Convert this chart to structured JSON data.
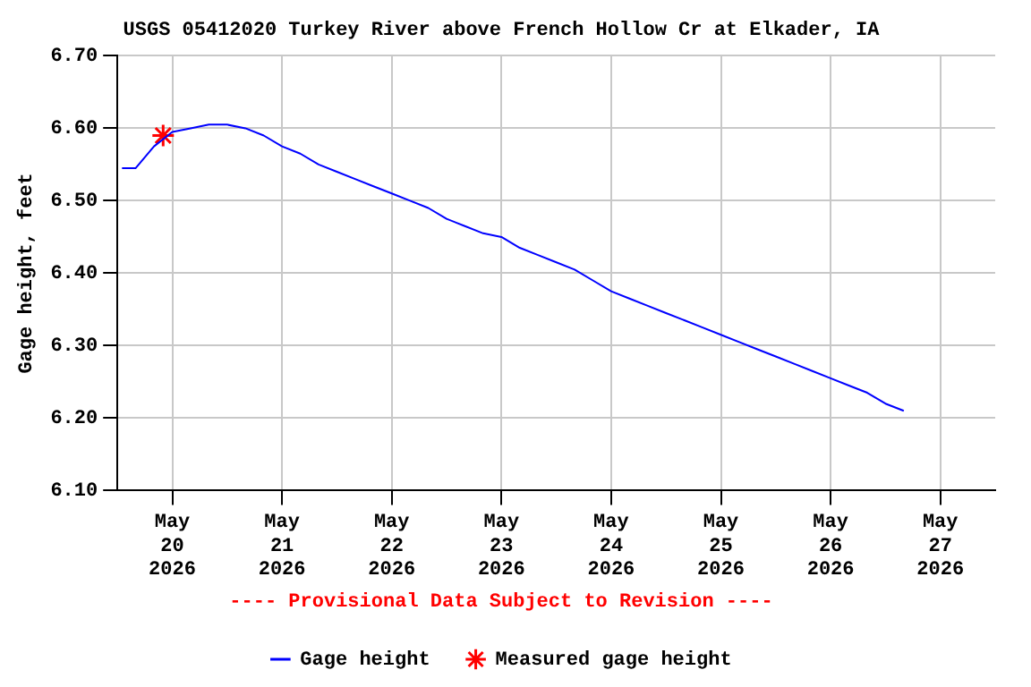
{
  "chart_data": {
    "type": "line",
    "title": "USGS 05412020 Turkey River above French Hollow Cr at Elkader, IA",
    "ylabel": "Gage height, feet",
    "annotations": [
      "---- Provisional Data Subject to Revision ----"
    ],
    "xlim": [
      "2026-05-19T12:00",
      "2026-05-27T12:00"
    ],
    "xticks": [
      {
        "value": "2026-05-20T00:00",
        "label": "May\n20\n2026"
      },
      {
        "value": "2026-05-21T00:00",
        "label": "May\n21\n2026"
      },
      {
        "value": "2026-05-22T00:00",
        "label": "May\n22\n2026"
      },
      {
        "value": "2026-05-23T00:00",
        "label": "May\n23\n2026"
      },
      {
        "value": "2026-05-24T00:00",
        "label": "May\n24\n2026"
      },
      {
        "value": "2026-05-25T00:00",
        "label": "May\n25\n2026"
      },
      {
        "value": "2026-05-26T00:00",
        "label": "May\n26\n2026"
      },
      {
        "value": "2026-05-27T00:00",
        "label": "May\n27\n2026"
      }
    ],
    "ylim": [
      6.1,
      6.7
    ],
    "yticks": [
      {
        "value": 6.1,
        "label": "6.10"
      },
      {
        "value": 6.2,
        "label": "6.20"
      },
      {
        "value": 6.3,
        "label": "6.30"
      },
      {
        "value": 6.4,
        "label": "6.40"
      },
      {
        "value": 6.5,
        "label": "6.50"
      },
      {
        "value": 6.6,
        "label": "6.60"
      },
      {
        "value": 6.7,
        "label": "6.70"
      }
    ],
    "grid": true,
    "legend": "bottom",
    "series": [
      {
        "name": "Gage height",
        "color": "#0000ff",
        "marker": "none",
        "line_style": "solid",
        "x": [
          "2026-05-19T13:00",
          "2026-05-19T16:00",
          "2026-05-19T20:00",
          "2026-05-20T00:00",
          "2026-05-20T04:00",
          "2026-05-20T08:00",
          "2026-05-20T12:00",
          "2026-05-20T16:00",
          "2026-05-20T20:00",
          "2026-05-21T00:00",
          "2026-05-21T04:00",
          "2026-05-21T08:00",
          "2026-05-21T12:00",
          "2026-05-21T16:00",
          "2026-05-21T20:00",
          "2026-05-22T00:00",
          "2026-05-22T04:00",
          "2026-05-22T08:00",
          "2026-05-22T12:00",
          "2026-05-22T16:00",
          "2026-05-22T20:00",
          "2026-05-23T00:00",
          "2026-05-23T04:00",
          "2026-05-23T08:00",
          "2026-05-23T12:00",
          "2026-05-23T16:00",
          "2026-05-23T20:00",
          "2026-05-24T00:00",
          "2026-05-24T04:00",
          "2026-05-24T08:00",
          "2026-05-24T12:00",
          "2026-05-24T16:00",
          "2026-05-24T20:00",
          "2026-05-25T00:00",
          "2026-05-25T04:00",
          "2026-05-25T08:00",
          "2026-05-25T12:00",
          "2026-05-25T16:00",
          "2026-05-25T20:00",
          "2026-05-26T00:00",
          "2026-05-26T04:00",
          "2026-05-26T08:00",
          "2026-05-26T12:00",
          "2026-05-26T16:00"
        ],
        "values": [
          6.545,
          6.545,
          6.575,
          6.595,
          6.6,
          6.605,
          6.605,
          6.6,
          6.59,
          6.575,
          6.565,
          6.55,
          6.54,
          6.53,
          6.52,
          6.51,
          6.5,
          6.49,
          6.475,
          6.465,
          6.455,
          6.45,
          6.435,
          6.425,
          6.415,
          6.405,
          6.39,
          6.375,
          6.365,
          6.355,
          6.345,
          6.335,
          6.325,
          6.315,
          6.305,
          6.295,
          6.285,
          6.275,
          6.265,
          6.255,
          6.245,
          6.235,
          6.22,
          6.21
        ]
      },
      {
        "name": "Measured gage height",
        "type": "scatter",
        "color": "#ff0000",
        "marker": "cross",
        "x": [
          "2026-05-19T22:00"
        ],
        "values": [
          6.59
        ]
      }
    ]
  }
}
